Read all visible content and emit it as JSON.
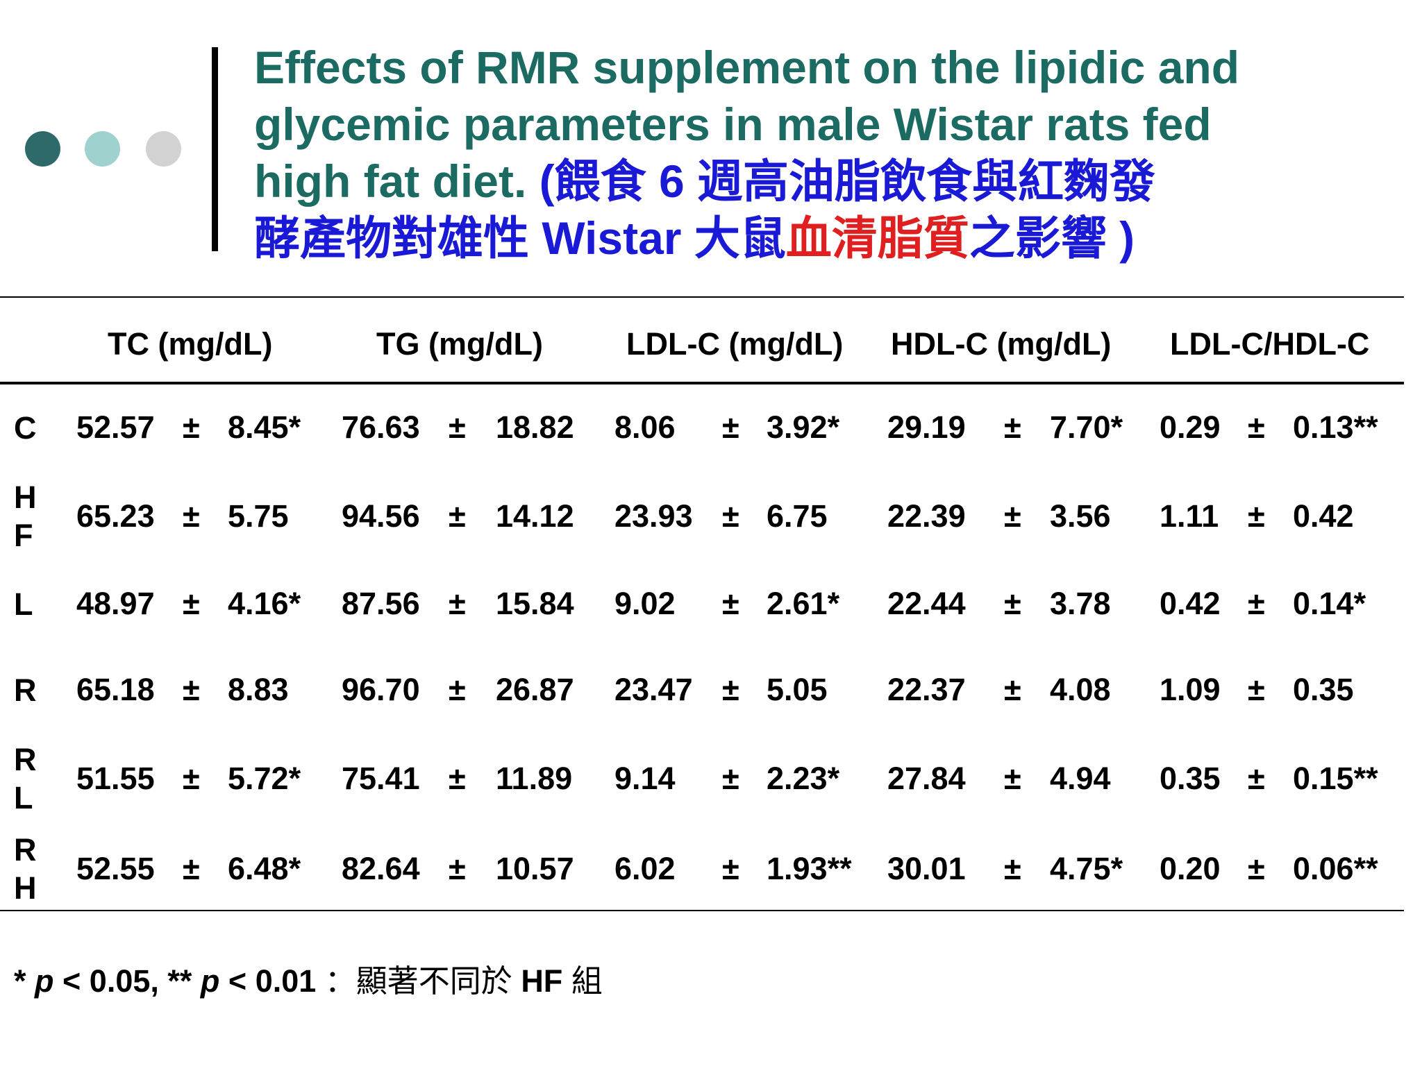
{
  "slide": {
    "title": {
      "line1": "Effects of RMR supplement on the lipidic and",
      "line2": "glycemic parameters in male Wistar rats fed",
      "line3_en": "high fat diet.",
      "line3_paren": " (",
      "line3_zh": "餵食  6  週高油脂飲食與紅麴發",
      "line4_zh1": "酵產物對雄性  ",
      "line4_en": "Wistar",
      "line4_zh2": " 大鼠",
      "line4_red": "血清脂質",
      "line4_zh3": "之影響",
      "line4_end": " )"
    },
    "colors": {
      "title": "#1c6b63",
      "title_zh": "#1a1ad6",
      "highlight": "#e02020",
      "dot1": "#2f6a6a",
      "dot2": "#9fd1cf",
      "dot3": "#d2d2d2"
    }
  },
  "table": {
    "pm": "±",
    "headers": [
      "TC (mg/dL)",
      "TG (mg/dL)",
      "LDL-C (mg/dL)",
      "HDL-C (mg/dL)",
      "LDL-C/HDL-C"
    ],
    "rows": [
      {
        "group": [
          "C"
        ],
        "tc": [
          "52.57",
          "8.45*"
        ],
        "tg": [
          "76.63",
          "18.82"
        ],
        "ldl": [
          "8.06",
          "3.92*"
        ],
        "hdl": [
          "29.19",
          "7.70*"
        ],
        "ratio": [
          "0.29",
          "0.13**"
        ]
      },
      {
        "group": [
          "H",
          "F"
        ],
        "tc": [
          "65.23",
          "5.75"
        ],
        "tg": [
          "94.56",
          "14.12"
        ],
        "ldl": [
          "23.93",
          "6.75"
        ],
        "hdl": [
          "22.39",
          "3.56"
        ],
        "ratio": [
          "1.11",
          "0.42"
        ]
      },
      {
        "group": [
          "L"
        ],
        "tc": [
          "48.97",
          "4.16*"
        ],
        "tg": [
          "87.56",
          "15.84"
        ],
        "ldl": [
          "9.02",
          "2.61*"
        ],
        "hdl": [
          "22.44",
          "3.78"
        ],
        "ratio": [
          "0.42",
          "0.14*"
        ]
      },
      {
        "group": [
          "R"
        ],
        "tc": [
          "65.18",
          "8.83"
        ],
        "tg": [
          "96.70",
          "26.87"
        ],
        "ldl": [
          "23.47",
          "5.05"
        ],
        "hdl": [
          "22.37",
          "4.08"
        ],
        "ratio": [
          "1.09",
          "0.35"
        ]
      },
      {
        "group": [
          "R",
          "L"
        ],
        "tc": [
          "51.55",
          "5.72*"
        ],
        "tg": [
          "75.41",
          "11.89"
        ],
        "ldl": [
          "9.14",
          "2.23*"
        ],
        "hdl": [
          "27.84",
          "4.94"
        ],
        "ratio": [
          "0.35",
          "0.15**"
        ]
      },
      {
        "group": [
          "R",
          "H"
        ],
        "tc": [
          "52.55",
          "6.48*"
        ],
        "tg": [
          "82.64",
          "10.57"
        ],
        "ldl": [
          "6.02",
          "1.93**"
        ],
        "hdl": [
          "30.01",
          "4.75*"
        ],
        "ratio": [
          "0.20",
          "0.06**"
        ]
      }
    ]
  },
  "footnote": {
    "star1": "* ",
    "p1": "p",
    "lt1": " < 0.05, ** ",
    "p2": "p",
    "lt2": " < 0.01  ",
    "zh1": "：顯著不同於  ",
    "hf": "HF",
    "zh2": "  組"
  }
}
